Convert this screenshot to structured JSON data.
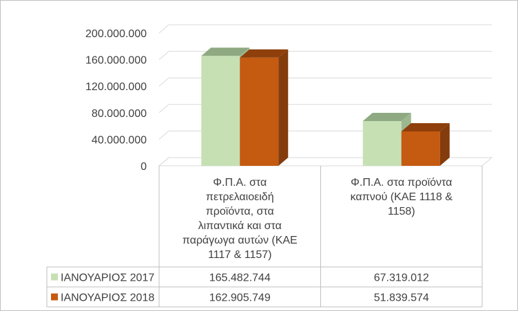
{
  "chart_data": {
    "type": "bar",
    "view": "3d-clustered-column-with-data-table",
    "categories": [
      "Φ.Π.Α. στα πετρελαιοειδή προϊόντα, στα λιπαντικά και στα παράγωγα αυτών (ΚΑΕ 1117 & 1157)",
      "Φ.Π.Α. στα προϊόντα καπνού (ΚΑΕ 1118 & 1158)"
    ],
    "category_lines": [
      [
        "Φ.Π.Α. στα",
        "πετρελαιοειδή",
        "προϊόντα, στα",
        "λιπαντικά και στα",
        "παράγωγα αυτών (ΚΑΕ",
        "1117 & 1157)"
      ],
      [
        "Φ.Π.Α. στα προϊόντα",
        "καπνού (ΚΑΕ 1118 &",
        "1158)"
      ]
    ],
    "series": [
      {
        "name": "ΙΑΝΟΥΑΡΙΟΣ 2017",
        "values": [
          165482744,
          67319012
        ],
        "value_labels": [
          "165.482.744",
          "67.319.012"
        ],
        "color": "#c6e0b4",
        "top_color": "#8faa82",
        "side_color": "#9db88f"
      },
      {
        "name": "ΙΑΝΟΥΑΡΙΟΣ 2018",
        "values": [
          162905749,
          51839574
        ],
        "value_labels": [
          "162.905.749",
          "51.839.574"
        ],
        "color": "#c55a11",
        "top_color": "#8e3f0b",
        "side_color": "#843c0c"
      }
    ],
    "ylim": [
      0,
      200000000
    ],
    "yticks": [
      0,
      40000000,
      80000000,
      120000000,
      160000000,
      200000000
    ],
    "ytick_labels": [
      "0",
      "40.000.000",
      "80.000.000",
      "120.000.000",
      "160.000.000",
      "200.000.000"
    ],
    "grid": true,
    "legend": "data-table",
    "title": "",
    "xlabel": "",
    "ylabel": ""
  }
}
